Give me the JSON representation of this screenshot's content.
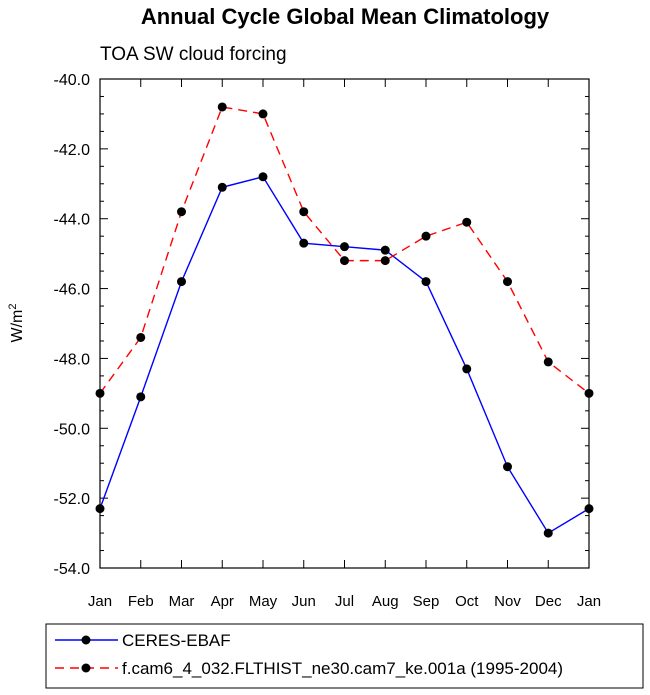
{
  "chart_data": {
    "type": "line",
    "title": "Annual Cycle Global Mean Climatology",
    "subtitle": "TOA SW cloud forcing",
    "ylabel": "W/m",
    "ylabel_sup": "2",
    "xlabel": "",
    "ylim": [
      -54.0,
      -40.0
    ],
    "yticks": [
      "-40.0",
      "-42.0",
      "-44.0",
      "-46.0",
      "-48.0",
      "-50.0",
      "-52.0",
      "-54.0"
    ],
    "categories": [
      "Jan",
      "Feb",
      "Mar",
      "Apr",
      "May",
      "Jun",
      "Jul",
      "Aug",
      "Sep",
      "Oct",
      "Nov",
      "Dec",
      "Jan"
    ],
    "grid": false,
    "legend_position": "bottom",
    "series": [
      {
        "name": "CERES-EBAF",
        "color": "#0000ff",
        "style": "solid",
        "values": [
          -52.3,
          -49.1,
          -45.8,
          -43.1,
          -42.8,
          -44.7,
          -44.8,
          -44.9,
          -45.8,
          -48.3,
          -51.1,
          -53.0,
          -52.3
        ]
      },
      {
        "name": "f.cam6_4_032.FLTHIST_ne30.cam7_ke.001a (1995-2004)",
        "color": "#ff0000",
        "style": "dashed",
        "values": [
          -49.0,
          -47.4,
          -43.8,
          -40.8,
          -41.0,
          -43.8,
          -45.2,
          -45.2,
          -44.5,
          -44.1,
          -45.8,
          -48.1,
          -49.0
        ]
      }
    ]
  }
}
